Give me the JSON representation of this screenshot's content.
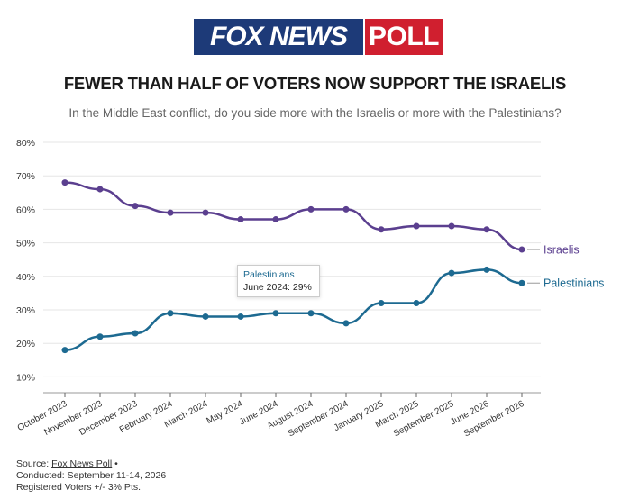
{
  "logo": {
    "left": "FOX NEWS",
    "right": "POLL"
  },
  "header": {
    "title": "FEWER THAN HALF OF VOTERS NOW SUPPORT THE ISRAELIS",
    "subtitle": "In the Middle East conflict, do you side more with the Israelis or more with the Palestinians?"
  },
  "tooltip": {
    "series": "Palestinians",
    "text": "June 2024: 29%"
  },
  "footer": {
    "source_prefix": "Source:",
    "source_link": "Fox News Poll",
    "source_suffix": "•",
    "conducted": "Conducted: September 11-14, 2026",
    "sample": "Registered Voters +/- 3% Pts."
  },
  "colors": {
    "israelis": "#5b3f8f",
    "palestinians": "#1d6a91",
    "grid": "#e6e6e6",
    "axis": "#333333"
  },
  "chart_data": {
    "type": "line",
    "categories": [
      "October 2023",
      "November 2023",
      "December 2023",
      "February 2024",
      "March 2024",
      "May 2024",
      "June 2024",
      "August 2024",
      "September 2024",
      "January 2025",
      "March 2025",
      "September 2025",
      "June 2026",
      "September 2026"
    ],
    "series": [
      {
        "name": "Israelis",
        "values": [
          68,
          66,
          61,
          59,
          59,
          57,
          57,
          60,
          60,
          54,
          55,
          55,
          54,
          48
        ]
      },
      {
        "name": "Palestinians",
        "values": [
          18,
          22,
          23,
          29,
          28,
          28,
          29,
          29,
          26,
          32,
          32,
          41,
          42,
          38
        ]
      }
    ],
    "yticks": [
      "10%",
      "20%",
      "30%",
      "40%",
      "50%",
      "60%",
      "70%",
      "80%"
    ],
    "ylim": [
      7,
      80
    ],
    "grid": "horizontal",
    "legend": "end-of-line labels"
  }
}
